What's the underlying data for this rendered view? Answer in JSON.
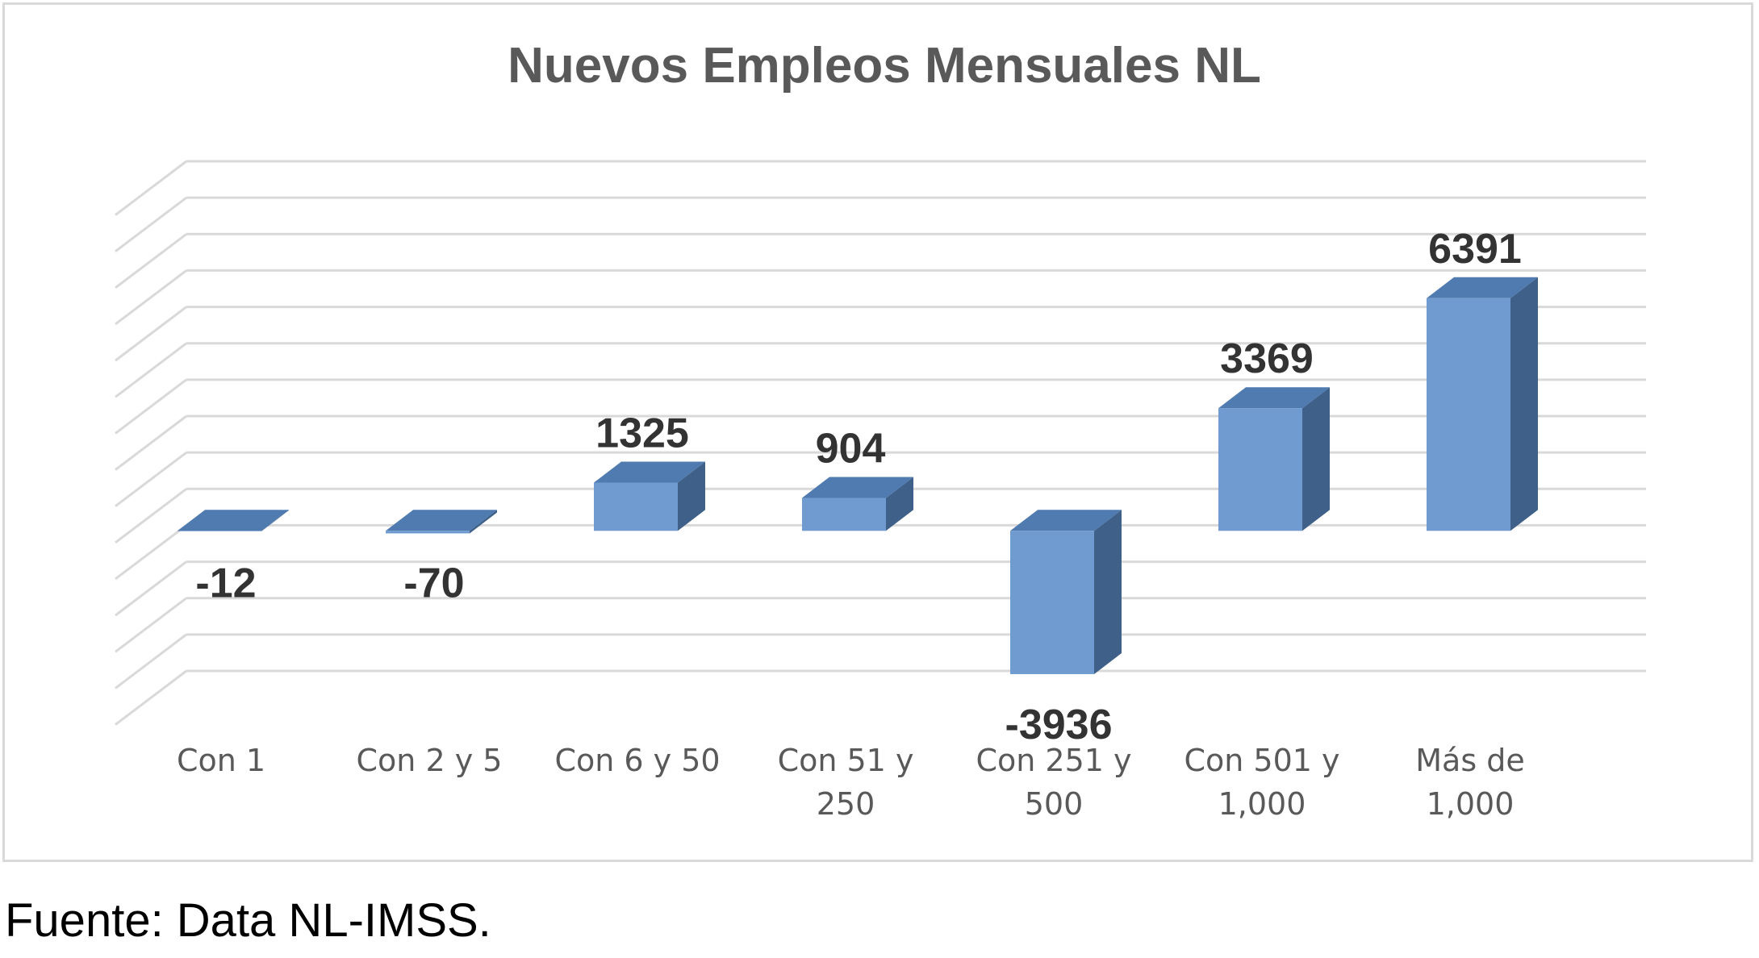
{
  "chart_data": {
    "type": "bar",
    "title": "Nuevos Empleos Mensuales NL",
    "categories": [
      [
        "Con 1"
      ],
      [
        "Con 2 y 5"
      ],
      [
        "Con 6 y 50"
      ],
      [
        "Con 51 y",
        "250"
      ],
      [
        "Con 251 y",
        "500"
      ],
      [
        "Con 501 y",
        "1,000"
      ],
      [
        "Más de",
        "1,000"
      ]
    ],
    "series": [
      {
        "values": [
          -12,
          -70,
          1325,
          904,
          -3936,
          3369,
          6391
        ]
      }
    ],
    "data_labels": [
      "-12",
      "-70",
      "1325",
      "904",
      "-3936",
      "3369",
      "6391"
    ],
    "ylim": [
      -5000,
      9000
    ],
    "gridlines": true,
    "three_d": true,
    "legend": "none",
    "colors": {
      "front": "#6f9bd1",
      "top": "#4f7bb0",
      "side": "#3f6088",
      "grid": "#d9d9d9"
    }
  },
  "footer": {
    "source": "Fuente: Data NL-IMSS."
  }
}
